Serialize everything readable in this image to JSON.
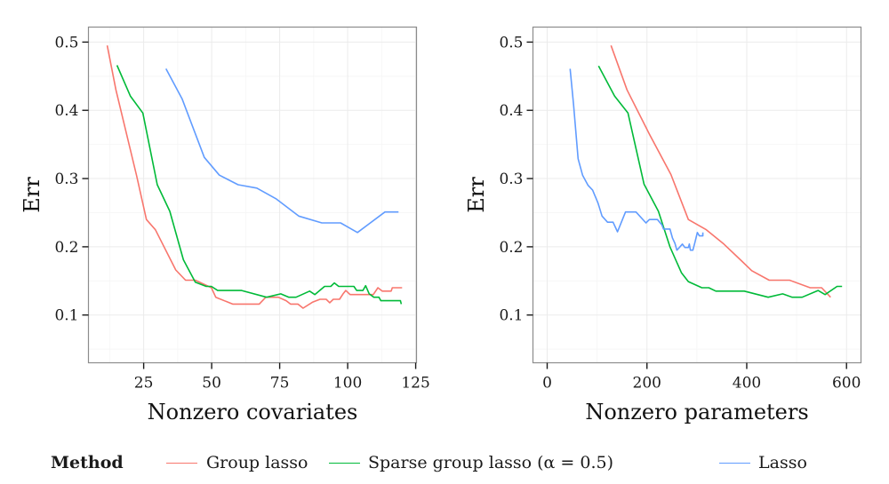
{
  "chart_data": [
    {
      "type": "line",
      "panel": "left",
      "xlabel": "Nonzero covariates",
      "ylabel": "Err",
      "xlim": [
        4.7,
        125.3
      ],
      "ylim": [
        0.03,
        0.522
      ],
      "xticks": [
        25,
        50,
        75,
        100,
        125
      ],
      "xtick_labels": [
        "25",
        "50",
        "75",
        "100",
        "125"
      ],
      "yticks": [
        0.1,
        0.2,
        0.3,
        0.4,
        0.5
      ],
      "ytick_labels": [
        "0.1",
        "0.2",
        "0.3",
        "0.4",
        "0.5"
      ],
      "grid": true,
      "series": [
        {
          "name": "Group lasso",
          "color": "#F8766D",
          "x": [
            11.6,
            14.8,
            22.4,
            26,
            29.3,
            36.8,
            40.4,
            44,
            49.9,
            51.5,
            57.7,
            67.5,
            69.9,
            74.5,
            77.4,
            79,
            81.7,
            83.6,
            87.2,
            89.8,
            92.1,
            93.4,
            94.7,
            97,
            98.3,
            99.3,
            100.9,
            107.5,
            109.4,
            111.1,
            112.7,
            116,
            116.4,
            120
          ],
          "y": [
            0.495,
            0.43,
            0.304,
            0.24,
            0.225,
            0.166,
            0.151,
            0.151,
            0.14,
            0.126,
            0.116,
            0.116,
            0.126,
            0.126,
            0.121,
            0.116,
            0.116,
            0.11,
            0.119,
            0.123,
            0.123,
            0.118,
            0.123,
            0.123,
            0.131,
            0.136,
            0.13,
            0.13,
            0.13,
            0.14,
            0.135,
            0.135,
            0.14,
            0.14
          ]
        },
        {
          "name": "Sparse group lasso (α = 0.5)",
          "color": "#00BA38",
          "x": [
            15.2,
            20.1,
            24.7,
            30,
            34.6,
            39.6,
            44,
            48,
            49.9,
            52.2,
            61,
            70.2,
            75.4,
            78.4,
            81,
            86,
            87.9,
            91.5,
            93.8,
            95.1,
            96.7,
            102.3,
            103.3,
            105.6,
            106.6,
            107.9,
            109.6,
            111.5,
            112.2,
            119.4,
            119.7
          ],
          "y": [
            0.466,
            0.421,
            0.396,
            0.291,
            0.252,
            0.181,
            0.148,
            0.142,
            0.142,
            0.136,
            0.136,
            0.126,
            0.131,
            0.126,
            0.126,
            0.135,
            0.13,
            0.142,
            0.142,
            0.147,
            0.142,
            0.142,
            0.136,
            0.136,
            0.143,
            0.131,
            0.126,
            0.126,
            0.121,
            0.121,
            0.116
          ]
        },
        {
          "name": "Lasso",
          "color": "#619CFF",
          "x": [
            33.2,
            39.1,
            47.3,
            52.8,
            59.7,
            66.6,
            73.8,
            82,
            90.5,
            97.4,
            103.6,
            113.7,
            118.7
          ],
          "y": [
            0.461,
            0.417,
            0.331,
            0.305,
            0.291,
            0.286,
            0.27,
            0.245,
            0.235,
            0.235,
            0.221,
            0.251,
            0.251
          ]
        }
      ]
    },
    {
      "type": "line",
      "panel": "right",
      "xlabel": "Nonzero parameters",
      "ylabel": "Err",
      "xlim": [
        -28.5,
        629
      ],
      "ylim": [
        0.03,
        0.522
      ],
      "xticks": [
        0,
        200,
        400,
        600
      ],
      "xtick_labels": [
        "0",
        "200",
        "400",
        "600"
      ],
      "yticks": [
        0.1,
        0.2,
        0.3,
        0.4,
        0.5
      ],
      "ytick_labels": [
        "0.1",
        "0.2",
        "0.3",
        "0.4",
        "0.5"
      ],
      "grid": true,
      "series": [
        {
          "name": "Group lasso",
          "color": "#F8766D",
          "x": [
            128,
            160,
            205,
            248,
            283,
            319,
            354,
            390,
            410,
            445,
            486,
            527,
            550,
            568
          ],
          "y": [
            0.495,
            0.43,
            0.365,
            0.306,
            0.24,
            0.225,
            0.204,
            0.179,
            0.165,
            0.151,
            0.151,
            0.14,
            0.14,
            0.126
          ]
        },
        {
          "name": "Sparse group lasso (α = 0.5)",
          "color": "#00BA38",
          "x": [
            103,
            135,
            162,
            194,
            223,
            246,
            269,
            283,
            310,
            324,
            338,
            395,
            443,
            472,
            491,
            511,
            543,
            557,
            581,
            591
          ],
          "y": [
            0.465,
            0.421,
            0.396,
            0.292,
            0.252,
            0.2,
            0.162,
            0.149,
            0.14,
            0.14,
            0.135,
            0.135,
            0.126,
            0.131,
            0.126,
            0.126,
            0.136,
            0.13,
            0.142,
            0.142
          ]
        },
        {
          "name": "Lasso",
          "color": "#619CFF",
          "x": [
            46,
            53,
            62,
            71,
            82,
            91,
            102,
            110,
            121,
            132,
            141,
            157,
            178,
            198,
            205,
            221,
            230,
            233,
            246,
            251,
            256,
            260,
            265,
            271,
            276,
            283,
            285,
            287,
            292,
            296,
            301,
            305,
            312,
            312
          ],
          "y": [
            0.461,
            0.408,
            0.329,
            0.305,
            0.29,
            0.283,
            0.264,
            0.245,
            0.236,
            0.236,
            0.222,
            0.251,
            0.251,
            0.235,
            0.24,
            0.24,
            0.232,
            0.226,
            0.226,
            0.213,
            0.205,
            0.195,
            0.199,
            0.204,
            0.199,
            0.199,
            0.204,
            0.195,
            0.195,
            0.206,
            0.221,
            0.216,
            0.216,
            0.221
          ]
        }
      ]
    }
  ],
  "legend": {
    "title": "Method",
    "items": [
      {
        "label": "Group lasso",
        "color": "#F8766D"
      },
      {
        "label": "Sparse group lasso (α = 0.5)",
        "color": "#00BA38"
      },
      {
        "label": "Lasso",
        "color": "#619CFF"
      }
    ]
  }
}
